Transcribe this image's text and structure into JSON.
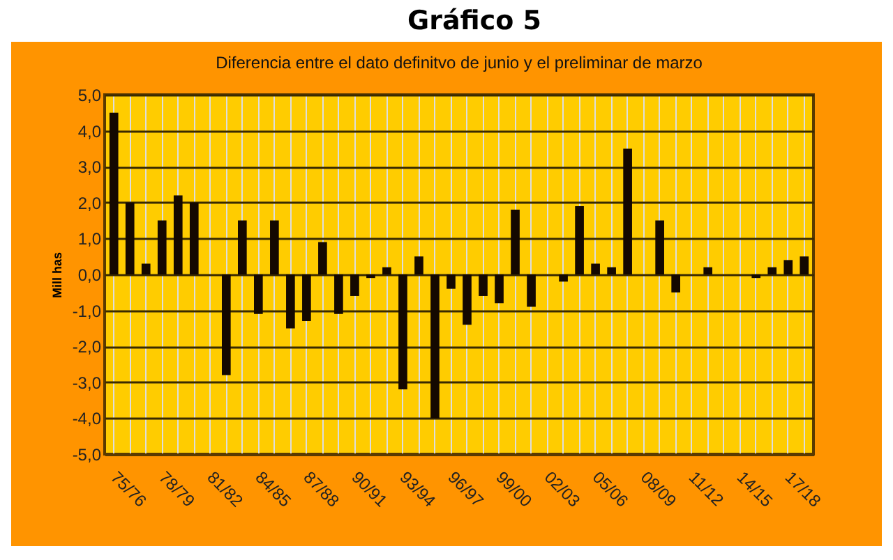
{
  "chart_data": {
    "type": "bar",
    "title": "Gráfico 5",
    "subtitle": "Diferencia entre el dato definitvo de junio y el preliminar de marzo",
    "ylabel": "Mill has",
    "categories": [
      "75/76",
      null,
      null,
      "78/79",
      null,
      null,
      "81/82",
      null,
      null,
      "84/85",
      null,
      null,
      "87/88",
      null,
      null,
      "90/91",
      null,
      null,
      "93/94",
      null,
      null,
      "96/97",
      null,
      null,
      "99/00",
      null,
      null,
      "02/03",
      null,
      null,
      "05/06",
      null,
      null,
      "08/09",
      null,
      null,
      "11/12",
      null,
      null,
      "14/15",
      null,
      null,
      "17/18",
      null
    ],
    "values": [
      4.5,
      2.0,
      0.3,
      1.5,
      2.2,
      2.0,
      0,
      -2.8,
      1.5,
      -1.1,
      1.5,
      -1.5,
      -1.3,
      0.9,
      -1.1,
      -0.6,
      -0.1,
      0.2,
      -3.2,
      0.5,
      -4.0,
      -0.4,
      -1.4,
      -0.6,
      -0.8,
      1.8,
      -0.9,
      0,
      -0.2,
      1.9,
      0.3,
      0.2,
      3.5,
      0,
      1.5,
      -0.5,
      0,
      0.2,
      0,
      0,
      -0.1,
      0.2,
      0.4,
      0.5
    ],
    "color": "#140800",
    "ylim": [
      -5,
      5
    ],
    "yticks": [
      {
        "value": -5,
        "label": "-5,0"
      },
      {
        "value": -4,
        "label": "-4,0"
      },
      {
        "value": -3,
        "label": "-3,0"
      },
      {
        "value": -2,
        "label": "-2,0"
      },
      {
        "value": -1,
        "label": "-1,0"
      },
      {
        "value": 0,
        "label": "0,0"
      },
      {
        "value": 1,
        "label": "1,0"
      },
      {
        "value": 2,
        "label": "2,0"
      },
      {
        "value": 3,
        "label": "3,0"
      },
      {
        "value": 4,
        "label": "4,0"
      },
      {
        "value": 5,
        "label": "5,0"
      }
    ],
    "grid": true
  }
}
